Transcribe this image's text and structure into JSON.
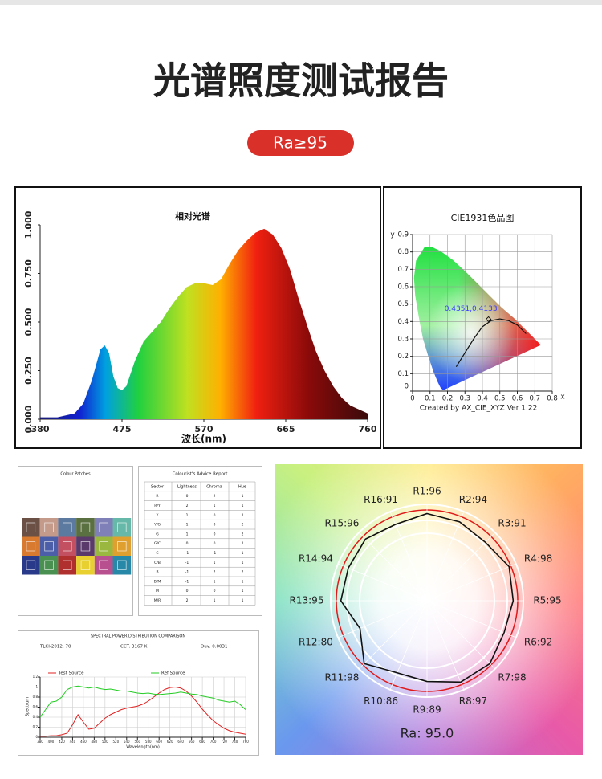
{
  "header": {
    "title": "光谱照度测试报告",
    "badge": "Ra≥95"
  },
  "chart_data": [
    {
      "type": "area",
      "title": "相对光谱",
      "x_label": "波长(nm)",
      "x": [
        380,
        400,
        420,
        430,
        440,
        450,
        455,
        460,
        465,
        470,
        475,
        480,
        490,
        500,
        510,
        520,
        530,
        540,
        550,
        560,
        570,
        580,
        590,
        600,
        610,
        620,
        630,
        640,
        650,
        660,
        670,
        680,
        690,
        700,
        710,
        720,
        730,
        740,
        750,
        760
      ],
      "values": [
        0.01,
        0.01,
        0.03,
        0.08,
        0.2,
        0.36,
        0.38,
        0.34,
        0.22,
        0.16,
        0.15,
        0.17,
        0.3,
        0.4,
        0.45,
        0.5,
        0.57,
        0.63,
        0.68,
        0.7,
        0.7,
        0.69,
        0.72,
        0.8,
        0.87,
        0.92,
        0.96,
        0.98,
        0.95,
        0.88,
        0.77,
        0.62,
        0.48,
        0.35,
        0.25,
        0.17,
        0.11,
        0.07,
        0.05,
        0.03
      ],
      "xlim": [
        380,
        760
      ],
      "xticks": [
        380,
        475,
        570,
        665,
        760
      ],
      "ylim": [
        0,
        1
      ],
      "yticks": [
        {
          "value": 0,
          "label": "0.000"
        },
        {
          "value": 0.25,
          "label": "0.250"
        },
        {
          "value": 0.5,
          "label": "0.500"
        },
        {
          "value": 0.75,
          "label": "0.750"
        },
        {
          "value": 1,
          "label": "1.000"
        }
      ]
    },
    {
      "type": "scatter",
      "title": "CIE1931色品图",
      "x_label": "x",
      "y_label": "y",
      "x": [
        0.4351
      ],
      "values": [
        0.4133
      ],
      "point_labels": [
        "0.4351,0.4133"
      ],
      "color": "#3a3aff",
      "xlim": [
        0,
        0.8
      ],
      "xticks": [
        0,
        0.1,
        0.2,
        0.3,
        0.4,
        0.5,
        0.6,
        0.7,
        0.8
      ],
      "ylim": [
        0,
        0.9
      ],
      "yticks": [
        0,
        0.1,
        0.2,
        0.3,
        0.4,
        0.5,
        0.6,
        0.7,
        0.8,
        0.9
      ],
      "grid": true,
      "footnote": "Created by AX_CIE_XYZ Ver 1.22"
    },
    {
      "type": "line",
      "title": "SPECTRAL POWER DISTRIBUTION COMPARISON",
      "subtitles": [
        "TLCI-2012: 70",
        "CCT: 3167 K",
        "Duv: 0.0031"
      ],
      "x_label": "Wavelength(nm)",
      "y_label": "Spectrum",
      "x": [
        380,
        390,
        400,
        410,
        420,
        430,
        440,
        450,
        460,
        470,
        480,
        490,
        500,
        510,
        520,
        530,
        540,
        550,
        560,
        570,
        580,
        590,
        600,
        610,
        620,
        630,
        640,
        650,
        660,
        670,
        680,
        690,
        700,
        710,
        720,
        730,
        740,
        750,
        760
      ],
      "series": [
        {
          "name": "Test Source",
          "color": "#e02020",
          "values": [
            0.02,
            0.02,
            0.03,
            0.03,
            0.05,
            0.08,
            0.25,
            0.45,
            0.3,
            0.16,
            0.18,
            0.28,
            0.38,
            0.45,
            0.5,
            0.55,
            0.58,
            0.6,
            0.62,
            0.66,
            0.72,
            0.8,
            0.88,
            0.95,
            0.99,
            1.0,
            0.98,
            0.92,
            0.82,
            0.7,
            0.56,
            0.44,
            0.33,
            0.25,
            0.18,
            0.13,
            0.1,
            0.08,
            0.06
          ]
        },
        {
          "name": "Ref Source",
          "color": "#22cc22",
          "values": [
            0.4,
            0.55,
            0.7,
            0.72,
            0.8,
            0.95,
            1.0,
            1.02,
            1.0,
            0.98,
            1.0,
            0.97,
            0.95,
            0.96,
            0.94,
            0.92,
            0.92,
            0.9,
            0.88,
            0.87,
            0.88,
            0.86,
            0.85,
            0.86,
            0.87,
            0.88,
            0.9,
            0.88,
            0.86,
            0.85,
            0.82,
            0.8,
            0.78,
            0.74,
            0.72,
            0.7,
            0.72,
            0.65,
            0.55
          ]
        }
      ],
      "xlim": [
        380,
        760
      ],
      "xticks": [
        380,
        400,
        420,
        440,
        460,
        480,
        500,
        520,
        540,
        560,
        580,
        600,
        620,
        640,
        660,
        680,
        700,
        720,
        740,
        760
      ],
      "ylim": [
        0,
        1.2
      ],
      "yticks": [
        0,
        0.2,
        0.4,
        0.6,
        0.8,
        1,
        1.2
      ],
      "grid": true
    },
    {
      "type": "radar",
      "values": [
        96,
        94,
        91,
        98,
        95,
        92,
        98,
        97,
        89,
        86,
        98,
        80,
        95,
        94,
        96,
        91
      ],
      "value_labels": [
        "R1:96",
        "R2:94",
        "R3:91",
        "R4:98",
        "R5:95",
        "R6:92",
        "R7:98",
        "R8:97",
        "R9:89",
        "R10:86",
        "R11:98",
        "R12:80",
        "R13:95",
        "R14:94",
        "R15:96",
        "R16:91"
      ],
      "rlim": [
        0,
        100
      ],
      "color": "#111111",
      "summary": "Ra:  95.0"
    }
  ],
  "colour_patches": {
    "title": "Colour Patches",
    "colors": [
      "#6b5045",
      "#c49a8a",
      "#5c7aa0",
      "#5b7040",
      "#8080b8",
      "#66b8a8",
      "#d87a30",
      "#4c5ea8",
      "#c25060",
      "#5a3a6a",
      "#9ab840",
      "#e0a030",
      "#2a3a8a",
      "#4a9050",
      "#b03030",
      "#e8d030",
      "#b85090",
      "#2888a8"
    ]
  },
  "advice_report": {
    "title": "Colourist's Advice Report",
    "columns": [
      "Sector",
      "Lightness",
      "Chroma",
      "Hue"
    ],
    "rows": [
      [
        "R",
        0,
        2,
        1
      ],
      [
        "R/Y",
        2,
        1,
        1
      ],
      [
        "Y",
        1,
        0,
        2
      ],
      [
        "Y/G",
        1,
        0,
        2
      ],
      [
        "G",
        1,
        0,
        2
      ],
      [
        "G/C",
        0,
        0,
        2
      ],
      [
        "C",
        -1,
        -1,
        1
      ],
      [
        "C/B",
        -1,
        1,
        1
      ],
      [
        "B",
        -1,
        2,
        2
      ],
      [
        "B/M",
        -1,
        1,
        1
      ],
      [
        "M",
        0,
        0,
        1
      ],
      [
        "M/R",
        2,
        1,
        1
      ]
    ]
  }
}
